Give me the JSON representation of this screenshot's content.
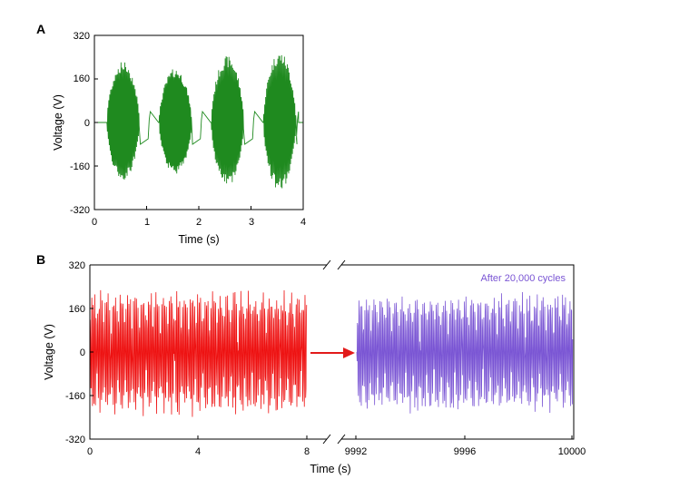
{
  "colors": {
    "panel_a_series": "#1f8a1f",
    "panel_b_before": "#ee1111",
    "panel_b_after": "#7a55d4",
    "arrow": "#e21a1a"
  },
  "chart_data": [
    {
      "panel": "A",
      "type": "line",
      "xlabel": "Time (s)",
      "ylabel": "Voltage (V)",
      "xlim": [
        0,
        4
      ],
      "ylim": [
        -320,
        320
      ],
      "xticks": [
        "0",
        "1",
        "2",
        "3",
        "4"
      ],
      "yticks": [
        "320",
        "160",
        "0",
        "-160",
        "-320"
      ],
      "grid": false,
      "series": [
        {
          "color": "#1f8a1f",
          "description_values": {
            "burst_centers_s": [
              0.55,
              1.55,
              2.55,
              3.55
            ],
            "burst_width_s": 0.62,
            "peak_positive_V": 260,
            "peak_negative_V": -250,
            "baseline_V": 0
          }
        }
      ]
    },
    {
      "panel": "B",
      "type": "line",
      "xlabel": "Time (s)",
      "ylabel": "Voltage (V)",
      "x_break": true,
      "segments": [
        {
          "xlim": [
            0,
            8
          ],
          "xticks": [
            "0",
            "4",
            "8"
          ]
        },
        {
          "xlim": [
            9992,
            10000
          ],
          "xticks": [
            "9992",
            "9996",
            "10000"
          ]
        }
      ],
      "ylim": [
        -320,
        320
      ],
      "yticks": [
        "320",
        "160",
        "0",
        "-160",
        "-320"
      ],
      "grid": false,
      "annotation": "After 20,000 cycles",
      "series": [
        {
          "color": "#ee1111",
          "segment": 0,
          "x_range": [
            0,
            8
          ],
          "peak_positive_V": 240,
          "peak_negative_V": -245
        },
        {
          "color": "#7a55d4",
          "segment": 1,
          "x_range": [
            9992,
            10000
          ],
          "peak_positive_V": 230,
          "peak_negative_V": -235
        }
      ]
    }
  ]
}
